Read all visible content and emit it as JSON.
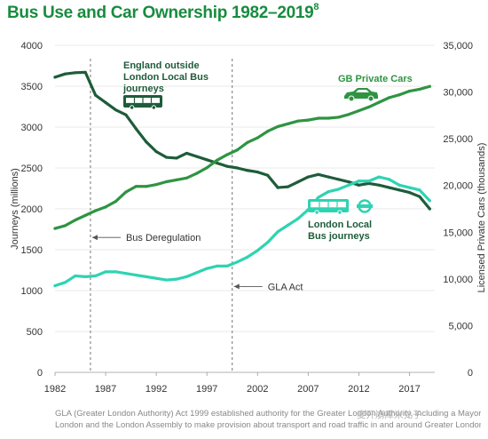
{
  "chart_data": {
    "type": "line",
    "title": "Bus Use and Car Ownership 1982–2019",
    "title_footnote": "8",
    "x": [
      1982,
      1983,
      1984,
      1985,
      1986,
      1987,
      1988,
      1989,
      1990,
      1991,
      1992,
      1993,
      1994,
      1995,
      1996,
      1997,
      1998,
      1999,
      2000,
      2001,
      2002,
      2003,
      2004,
      2005,
      2006,
      2007,
      2008,
      2009,
      2010,
      2011,
      2012,
      2013,
      2014,
      2015,
      2016,
      2017,
      2018,
      2019
    ],
    "x_ticks": [
      "1982",
      "1987",
      "1992",
      "1997",
      "2002",
      "2007",
      "2012",
      "2017"
    ],
    "xlim": [
      1982,
      2019.5
    ],
    "y_left": {
      "label": "Journeys (millions)",
      "lim": [
        0,
        4000
      ],
      "ticks": [
        "0",
        "500",
        "1000",
        "1500",
        "2000",
        "2500",
        "3000",
        "3500",
        "4000"
      ]
    },
    "y_right": {
      "label": "Licensed Private Cars (thousands)",
      "lim": [
        0,
        35000
      ],
      "ticks": [
        "0",
        "5,000",
        "10,000",
        "15,000",
        "20,000",
        "25,000",
        "30,000",
        "35,000"
      ]
    },
    "series": [
      {
        "name": "England outside London Local Bus journeys",
        "label_lines": [
          "England outside",
          "London Local Bus",
          "journeys"
        ],
        "axis": "left",
        "color": "#1e5c3a",
        "icon": "bus-icon",
        "values": [
          3610,
          3650,
          3665,
          3670,
          3390,
          3300,
          3210,
          3150,
          2980,
          2820,
          2700,
          2630,
          2620,
          2680,
          2640,
          2600,
          2560,
          2520,
          2500,
          2470,
          2450,
          2410,
          2260,
          2270,
          2330,
          2390,
          2420,
          2390,
          2360,
          2330,
          2290,
          2310,
          2290,
          2260,
          2230,
          2200,
          2150,
          2000
        ]
      },
      {
        "name": "GB Private Cars",
        "axis": "right",
        "color": "#2e9442",
        "icon": "car-icon",
        "values": [
          15400,
          15700,
          16300,
          16800,
          17300,
          17700,
          18300,
          19300,
          19900,
          19900,
          20100,
          20400,
          20600,
          20800,
          21300,
          21900,
          22700,
          23300,
          23800,
          24600,
          25100,
          25800,
          26300,
          26600,
          26900,
          27000,
          27200,
          27200,
          27300,
          27600,
          28000,
          28400,
          28900,
          29400,
          29700,
          30100,
          30300,
          30600
        ]
      },
      {
        "name": "London Local Bus journeys",
        "label_lines": [
          "London Local",
          "Bus journeys"
        ],
        "axis": "left",
        "color": "#2ed3b2",
        "icon": "bus-icon",
        "values": [
          1060,
          1100,
          1180,
          1170,
          1180,
          1230,
          1230,
          1210,
          1190,
          1170,
          1150,
          1130,
          1140,
          1170,
          1220,
          1270,
          1300,
          1300,
          1350,
          1410,
          1490,
          1590,
          1720,
          1800,
          1880,
          1990,
          2140,
          2210,
          2240,
          2290,
          2340,
          2340,
          2390,
          2360,
          2290,
          2260,
          2230,
          2100
        ]
      }
    ],
    "annotations": [
      {
        "label": "Bus Deregulation",
        "x": 1985.5,
        "y": 1650
      },
      {
        "label": "GLA Act",
        "x": 1999.5,
        "y": 1050
      }
    ]
  },
  "footnote": {
    "lines": [
      "GLA (Greater London Authority) Act 1999 established authority for the Greater London Authority, including a Mayor of",
      "London and the London Assembly to make provision about transport and road traffic in and around Greater London."
    ]
  },
  "watermark": "麦开崩库米兑子",
  "colors": {
    "title": "#178c3e",
    "axis_text": "#333333",
    "dashed_line": "#888888"
  }
}
